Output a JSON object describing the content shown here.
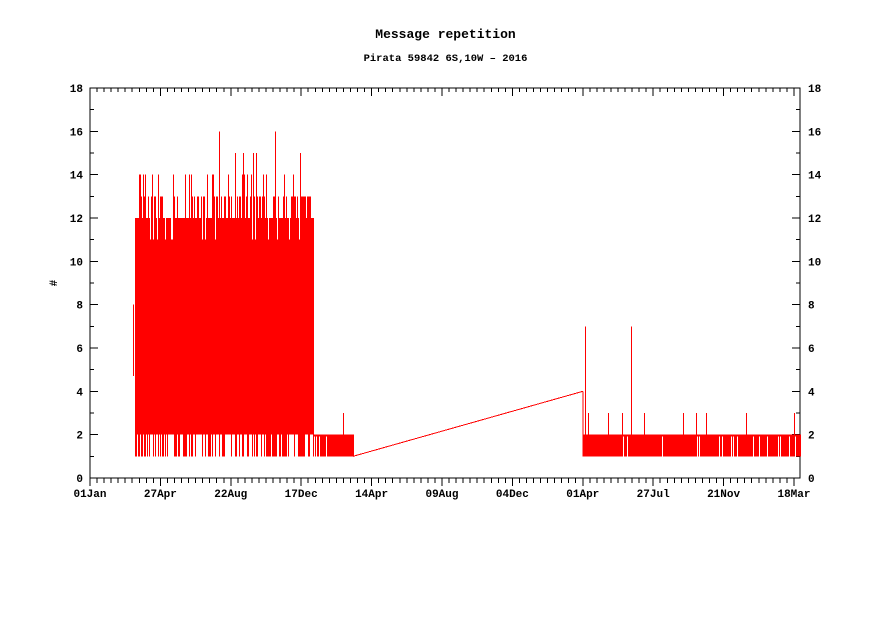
{
  "chart": {
    "title": "Message repetition",
    "subtitle": "Pirata 59842 6S,10W – 2016"
  },
  "chart_data": {
    "type": "line",
    "title": "Message repetition",
    "subtitle": "Pirata 59842 6S,10W – 2016",
    "xlabel": "",
    "ylabel": "#",
    "x_unit": "days since 01 Jan 2016",
    "x_range": [
      0,
      1180
    ],
    "ylim": [
      0,
      18
    ],
    "y_major_step": 2,
    "y_minor_step": 1,
    "x_minor_per_major": 10,
    "grid": "off",
    "legend": "none",
    "background": "#ffffff",
    "frame_color": "#000000",
    "line_color": "#ff0000",
    "noise_seed": 42,
    "y_tick_values": [
      0,
      2,
      4,
      6,
      8,
      10,
      12,
      14,
      16,
      18
    ],
    "y_tick_labels": [
      "0",
      "2",
      "4",
      "6",
      "8",
      "10",
      "12",
      "14",
      "16",
      "18"
    ],
    "x_tick_days": [
      0,
      117,
      234,
      351,
      468,
      585,
      702,
      819,
      936,
      1053,
      1170
    ],
    "x_tick_labels": [
      "01Jan",
      "27Apr",
      "22Aug",
      "17Dec",
      "14Apr",
      "09Aug",
      "04Dec",
      "01Apr",
      "27Jul",
      "21Nov",
      "18Mar"
    ],
    "segments": [
      {
        "kind": "line",
        "from": [
          72,
          4.7
        ],
        "to": [
          72,
          8
        ]
      },
      {
        "kind": "band_wide",
        "from_day": 74,
        "to_day": 371,
        "bottom": 2,
        "dip_to": 1,
        "dip_prob": 0.5,
        "top_levels": [
          [
            11,
            0.15
          ],
          [
            12,
            0.57
          ],
          [
            13,
            0.28
          ]
        ],
        "top_spike_prob": 0.22,
        "top_spike_max": 14
      },
      {
        "kind": "band_low",
        "from_day": 371,
        "to_day": 437,
        "low": 1,
        "high": 2,
        "gap_prob": 0.12
      },
      {
        "kind": "line",
        "from": [
          437,
          1
        ],
        "to": [
          819,
          4
        ]
      },
      {
        "kind": "line",
        "from": [
          819,
          4
        ],
        "to": [
          819,
          1
        ]
      },
      {
        "kind": "band_low",
        "from_day": 819,
        "to_day": 1180,
        "low": 1,
        "high": 2,
        "gap_prob": 0.07
      }
    ],
    "spikes": [
      {
        "day": 83,
        "value": 14
      },
      {
        "day": 113,
        "value": 14
      },
      {
        "day": 158,
        "value": 14
      },
      {
        "day": 168,
        "value": 14
      },
      {
        "day": 204,
        "value": 14
      },
      {
        "day": 230,
        "value": 14
      },
      {
        "day": 287,
        "value": 14
      },
      {
        "day": 337,
        "value": 14
      },
      {
        "day": 241,
        "value": 15
      },
      {
        "day": 254,
        "value": 15
      },
      {
        "day": 271,
        "value": 15
      },
      {
        "day": 276,
        "value": 15
      },
      {
        "day": 349,
        "value": 15
      },
      {
        "day": 214,
        "value": 16
      },
      {
        "day": 307,
        "value": 16
      },
      {
        "day": 420,
        "value": 3
      },
      {
        "day": 822,
        "value": 7
      },
      {
        "day": 899,
        "value": 7
      },
      {
        "day": 828,
        "value": 3
      },
      {
        "day": 861,
        "value": 3
      },
      {
        "day": 884,
        "value": 3
      },
      {
        "day": 921,
        "value": 3
      },
      {
        "day": 986,
        "value": 3
      },
      {
        "day": 1007,
        "value": 3
      },
      {
        "day": 1024,
        "value": 3
      },
      {
        "day": 1090,
        "value": 3
      },
      {
        "day": 1170,
        "value": 3
      }
    ]
  }
}
